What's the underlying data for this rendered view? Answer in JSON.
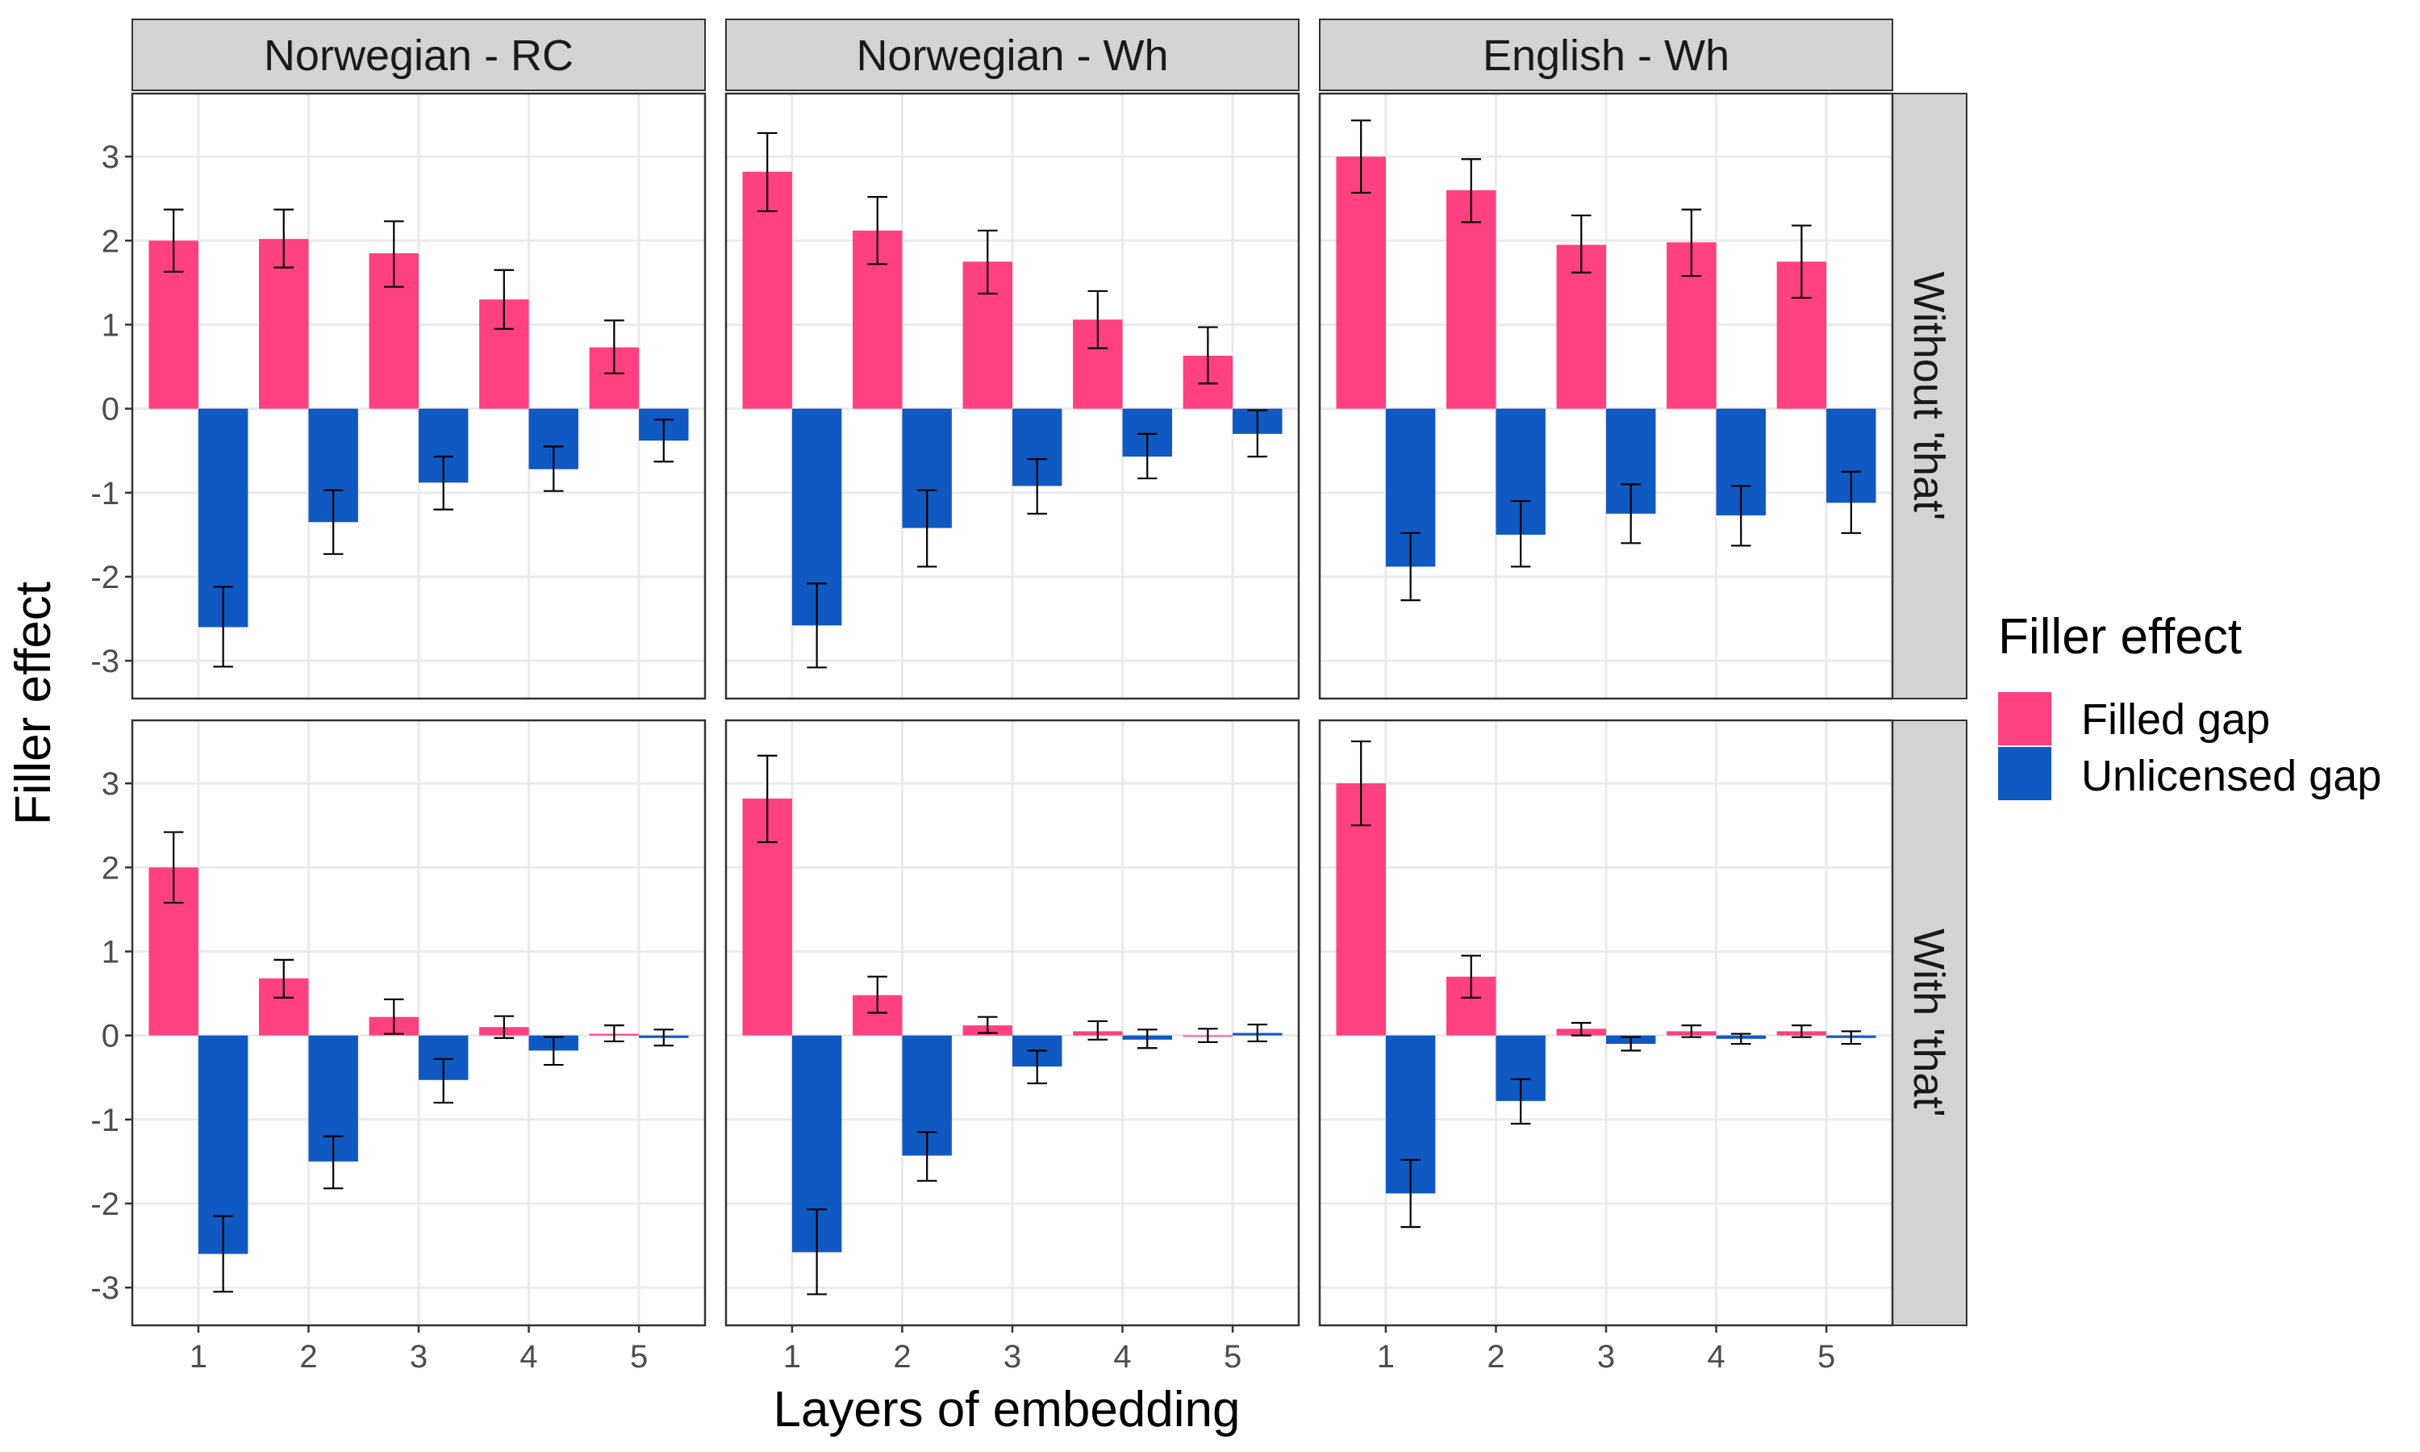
{
  "chart_data": {
    "type": "bar",
    "xlabel": "Layers of embedding",
    "ylabel": "Filler effect",
    "ylim": [
      -3.45,
      3.75
    ],
    "yticks": [
      -3,
      -2,
      -1,
      0,
      1,
      2,
      3
    ],
    "categories": [
      "1",
      "2",
      "3",
      "4",
      "5"
    ],
    "column_facets": [
      "Norwegian - RC",
      "Norwegian - Wh",
      "English - Wh"
    ],
    "row_facets": [
      "Without 'that'",
      "With 'that'"
    ],
    "legend": {
      "title": "Filler effect",
      "position": "right",
      "entries": [
        "Filled gap",
        "Unlicensed gap"
      ]
    },
    "colors": {
      "filled_gap": "#FF4081",
      "unlicensed_gap": "#1059C2",
      "strip_bg": "#D3D3D3",
      "grid": "#EBEBEB"
    },
    "grid": true,
    "panels": [
      {
        "row": 0,
        "col": 0,
        "series": [
          {
            "name": "Filled gap",
            "values": [
              2.0,
              2.02,
              1.85,
              1.3,
              0.73
            ],
            "ci_low": [
              1.63,
              1.68,
              1.45,
              0.95,
              0.42
            ],
            "ci_high": [
              2.37,
              2.37,
              2.23,
              1.65,
              1.05
            ]
          },
          {
            "name": "Unlicensed gap",
            "values": [
              -2.6,
              -1.35,
              -0.88,
              -0.72,
              -0.38
            ],
            "ci_low": [
              -3.07,
              -1.73,
              -1.2,
              -0.98,
              -0.63
            ],
            "ci_high": [
              -2.12,
              -0.97,
              -0.57,
              -0.45,
              -0.13
            ]
          }
        ]
      },
      {
        "row": 0,
        "col": 1,
        "series": [
          {
            "name": "Filled gap",
            "values": [
              2.82,
              2.12,
              1.75,
              1.06,
              0.63
            ],
            "ci_low": [
              2.35,
              1.72,
              1.37,
              0.72,
              0.3
            ],
            "ci_high": [
              3.28,
              2.52,
              2.12,
              1.4,
              0.97
            ]
          },
          {
            "name": "Unlicensed gap",
            "values": [
              -2.58,
              -1.42,
              -0.92,
              -0.57,
              -0.3
            ],
            "ci_low": [
              -3.08,
              -1.88,
              -1.25,
              -0.83,
              -0.57
            ],
            "ci_high": [
              -2.08,
              -0.97,
              -0.6,
              -0.3,
              -0.02
            ]
          }
        ]
      },
      {
        "row": 0,
        "col": 2,
        "series": [
          {
            "name": "Filled gap",
            "values": [
              3.0,
              2.6,
              1.95,
              1.98,
              1.75
            ],
            "ci_low": [
              2.57,
              2.22,
              1.62,
              1.58,
              1.32
            ],
            "ci_high": [
              3.43,
              2.97,
              2.3,
              2.37,
              2.18
            ]
          },
          {
            "name": "Unlicensed gap",
            "values": [
              -1.88,
              -1.5,
              -1.25,
              -1.27,
              -1.12
            ],
            "ci_low": [
              -2.28,
              -1.88,
              -1.6,
              -1.63,
              -1.48
            ],
            "ci_high": [
              -1.48,
              -1.1,
              -0.9,
              -0.92,
              -0.75
            ]
          }
        ]
      },
      {
        "row": 1,
        "col": 0,
        "series": [
          {
            "name": "Filled gap",
            "values": [
              2.0,
              0.68,
              0.22,
              0.1,
              0.02
            ],
            "ci_low": [
              1.58,
              0.45,
              0.02,
              -0.03,
              -0.07
            ],
            "ci_high": [
              2.42,
              0.9,
              0.43,
              0.23,
              0.12
            ]
          },
          {
            "name": "Unlicensed gap",
            "values": [
              -2.6,
              -1.5,
              -0.53,
              -0.18,
              -0.03
            ],
            "ci_low": [
              -3.05,
              -1.82,
              -0.8,
              -0.35,
              -0.12
            ],
            "ci_high": [
              -2.15,
              -1.2,
              -0.28,
              -0.02,
              0.07
            ]
          }
        ]
      },
      {
        "row": 1,
        "col": 1,
        "series": [
          {
            "name": "Filled gap",
            "values": [
              2.82,
              0.48,
              0.12,
              0.05,
              0.0
            ],
            "ci_low": [
              2.3,
              0.27,
              0.03,
              -0.05,
              -0.08
            ],
            "ci_high": [
              3.33,
              0.7,
              0.22,
              0.17,
              0.08
            ]
          },
          {
            "name": "Unlicensed gap",
            "values": [
              -2.58,
              -1.43,
              -0.37,
              -0.05,
              0.03
            ],
            "ci_low": [
              -3.08,
              -1.73,
              -0.57,
              -0.15,
              -0.07
            ],
            "ci_high": [
              -2.07,
              -1.15,
              -0.18,
              0.07,
              0.13
            ]
          }
        ]
      },
      {
        "row": 1,
        "col": 2,
        "series": [
          {
            "name": "Filled gap",
            "values": [
              3.0,
              0.7,
              0.08,
              0.05,
              0.05
            ],
            "ci_low": [
              2.5,
              0.45,
              0.0,
              -0.02,
              -0.02
            ],
            "ci_high": [
              3.5,
              0.95,
              0.15,
              0.12,
              0.12
            ]
          },
          {
            "name": "Unlicensed gap",
            "values": [
              -1.88,
              -0.78,
              -0.1,
              -0.04,
              -0.03
            ],
            "ci_low": [
              -2.28,
              -1.05,
              -0.18,
              -0.1,
              -0.1
            ],
            "ci_high": [
              -1.48,
              -0.52,
              -0.02,
              0.02,
              0.05
            ]
          }
        ]
      }
    ]
  }
}
